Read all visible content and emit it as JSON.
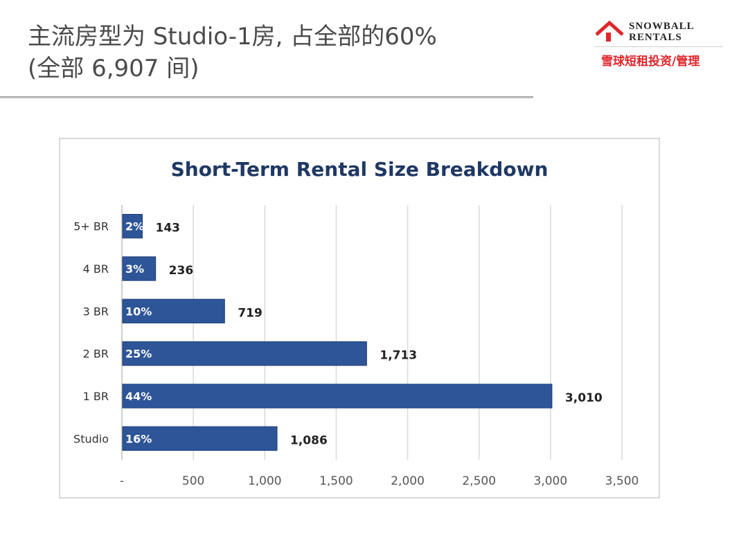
{
  "slide": {
    "title_line1": "主流房型为 Studio-1房, 占全部的60%",
    "title_line2": "(全部 6,907 间)"
  },
  "logo": {
    "name_line1": "SNOWBALL",
    "name_line2": "RENTALS",
    "tagline": "雪球短租投资/管理",
    "icon": "house-icon",
    "accent_color": "#e0262b"
  },
  "chart_data": {
    "type": "bar",
    "orientation": "horizontal",
    "title": "Short-Term Rental Size Breakdown",
    "categories": [
      "5+ BR",
      "4 BR",
      "3 BR",
      "2 BR",
      "1 BR",
      "Studio"
    ],
    "values": [
      143,
      236,
      719,
      1713,
      3010,
      1086
    ],
    "value_labels": [
      "143",
      "236",
      "719",
      "1,713",
      "3,010",
      "1,086"
    ],
    "percent_labels": [
      "2%",
      "3%",
      "10%",
      "25%",
      "44%",
      "16%"
    ],
    "xlim": [
      0,
      3500
    ],
    "xticks": [
      0,
      500,
      1000,
      1500,
      2000,
      2500,
      3000,
      3500
    ],
    "xtick_labels": [
      "-",
      "500",
      "1,000",
      "1,500",
      "2,000",
      "2,500",
      "3,000",
      "3,500"
    ],
    "grid": true,
    "bar_color": "#2e5598",
    "title_color": "#1f3864"
  }
}
